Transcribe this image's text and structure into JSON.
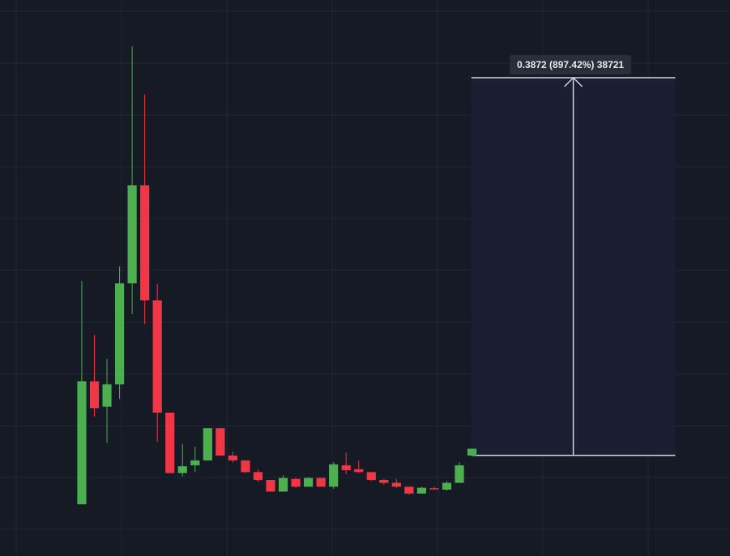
{
  "colors": {
    "background": "#161a25",
    "grid": "#232736",
    "up": "#4caf50",
    "down": "#f23645",
    "measure_fill": "#1b1f33",
    "measure_line": "#d1d4dc"
  },
  "measure": {
    "label": "0.3872 (897.42%) 38721",
    "from_price": 0.04315,
    "to_price": 0.43035
  },
  "chart_data": {
    "type": "candlestick",
    "title": "",
    "xlabel": "",
    "ylabel": "",
    "ylim": [
      -0.06,
      0.51
    ],
    "x_range": [
      -6.5,
      51.5
    ],
    "grid": true,
    "series": [
      {
        "o": -0.007,
        "h": 0.222,
        "l": -0.007,
        "c": 0.119
      },
      {
        "o": 0.119,
        "h": 0.1665,
        "l": 0.083,
        "c": 0.0915
      },
      {
        "o": 0.093,
        "h": 0.142,
        "l": 0.056,
        "c": 0.116
      },
      {
        "o": 0.116,
        "h": 0.237,
        "l": 0.101,
        "c": 0.2195
      },
      {
        "o": 0.2195,
        "h": 0.4625,
        "l": 0.188,
        "c": 0.32
      },
      {
        "o": 0.32,
        "h": 0.413,
        "l": 0.178,
        "c": 0.202
      },
      {
        "o": 0.202,
        "h": 0.219,
        "l": 0.057,
        "c": 0.087
      },
      {
        "o": 0.087,
        "h": 0.087,
        "l": 0.025,
        "c": 0.025
      },
      {
        "o": 0.025,
        "h": 0.055,
        "l": 0.0215,
        "c": 0.032
      },
      {
        "o": 0.033,
        "h": 0.052,
        "l": 0.026,
        "c": 0.038
      },
      {
        "o": 0.038,
        "h": 0.071,
        "l": 0.038,
        "c": 0.071
      },
      {
        "o": 0.071,
        "h": 0.071,
        "l": 0.043,
        "c": 0.043
      },
      {
        "o": 0.043,
        "h": 0.047,
        "l": 0.036,
        "c": 0.038
      },
      {
        "o": 0.038,
        "h": 0.038,
        "l": 0.025,
        "c": 0.026
      },
      {
        "o": 0.026,
        "h": 0.029,
        "l": 0.016,
        "c": 0.018
      },
      {
        "o": 0.018,
        "h": 0.018,
        "l": 0.006,
        "c": 0.006
      },
      {
        "o": 0.006,
        "h": 0.023,
        "l": 0.006,
        "c": 0.02
      },
      {
        "o": 0.019,
        "h": 0.02,
        "l": 0.01,
        "c": 0.011
      },
      {
        "o": 0.011,
        "h": 0.021,
        "l": 0.011,
        "c": 0.02
      },
      {
        "o": 0.02,
        "h": 0.02,
        "l": 0.011,
        "c": 0.011
      },
      {
        "o": 0.011,
        "h": 0.036,
        "l": 0.009,
        "c": 0.034
      },
      {
        "o": 0.033,
        "h": 0.046,
        "l": 0.024,
        "c": 0.028
      },
      {
        "o": 0.029,
        "h": 0.038,
        "l": 0.025,
        "c": 0.026
      },
      {
        "o": 0.026,
        "h": 0.026,
        "l": 0.017,
        "c": 0.018
      },
      {
        "o": 0.018,
        "h": 0.019,
        "l": 0.013,
        "c": 0.015
      },
      {
        "o": 0.015,
        "h": 0.019,
        "l": 0.01,
        "c": 0.011
      },
      {
        "o": 0.011,
        "h": 0.011,
        "l": 0.003,
        "c": 0.004
      },
      {
        "o": 0.004,
        "h": 0.011,
        "l": 0.004,
        "c": 0.01
      },
      {
        "o": 0.0095,
        "h": 0.011,
        "l": 0.0085,
        "c": 0.0085
      },
      {
        "o": 0.008,
        "h": 0.017,
        "l": 0.007,
        "c": 0.015
      },
      {
        "o": 0.015,
        "h": 0.036,
        "l": 0.015,
        "c": 0.033
      },
      {
        "o": 0.043,
        "h": 0.05,
        "l": 0.043,
        "c": 0.05
      }
    ]
  }
}
